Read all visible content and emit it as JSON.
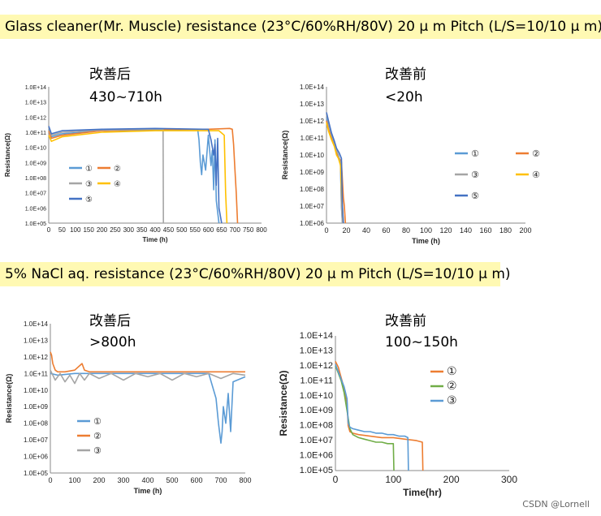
{
  "banners": {
    "glass": "Glass cleaner(Mr. Muscle) resistance (23°C/60%RH/80V) 20 μ m Pitch (L/S=10/10 μ m)",
    "nacl": "5% NaCl aq. resistance (23°C/60%RH/80V) 20 μ m Pitch (L/S=10/10 μ m)"
  },
  "annotations": {
    "c1_title": "改善后",
    "c1_time": "430~710h",
    "c2_title": "改善前",
    "c2_time": "<20h",
    "c3_title": "改善后",
    "c3_time": ">800h",
    "c4_title": "改善前",
    "c4_time": "100~150h"
  },
  "watermark": "CSDN @Lornell",
  "colors": {
    "s1": "#5b9bd5",
    "s2": "#ed7d31",
    "s3": "#a5a5a5",
    "s4": "#ffc000",
    "s5": "#4472c4",
    "s2_nacl_before": "#70ad47"
  },
  "chart_data": [
    {
      "id": "c1",
      "type": "line",
      "xlabel": "Time (h)",
      "ylabel": "Resistance(Ω)",
      "xlim": [
        0,
        800
      ],
      "ylim_exp": [
        5,
        14
      ],
      "xticks": [
        0,
        50,
        100,
        150,
        200,
        250,
        300,
        350,
        400,
        450,
        500,
        550,
        600,
        650,
        700,
        750,
        800
      ],
      "yticks": [
        "1.0E+05",
        "1.0E+06",
        "1.0E+07",
        "1.0E+08",
        "1.0E+09",
        "1.0E+10",
        "1.0E+11",
        "1.0E+12",
        "1.0E+13",
        "1.0E+14"
      ],
      "legend": [
        "①",
        "②",
        "③",
        "④",
        "⑤"
      ],
      "series": [
        {
          "name": "①",
          "color": "#5b9bd5",
          "x": [
            0,
            10,
            50,
            200,
            400,
            560,
            565,
            570,
            575,
            580,
            590,
            600,
            610,
            615,
            620,
            625,
            630,
            640
          ],
          "y": [
            11.2,
            10.7,
            10.9,
            11.1,
            11.15,
            11.2,
            10.5,
            9,
            8.2,
            9.5,
            8.5,
            10.8,
            8.8,
            9.8,
            7.2,
            10.5,
            6.5,
            5
          ]
        },
        {
          "name": "②",
          "color": "#ed7d31",
          "x": [
            0,
            10,
            50,
            200,
            400,
            600,
            680,
            690,
            695,
            700,
            705,
            710
          ],
          "y": [
            11.1,
            10.6,
            10.8,
            11.1,
            11.2,
            11.2,
            11.25,
            11.2,
            10.2,
            8.5,
            7,
            5
          ]
        },
        {
          "name": "③",
          "color": "#a5a5a5",
          "x": [
            0,
            10,
            50,
            200,
            400,
            430,
            431
          ],
          "y": [
            11.3,
            10.8,
            11,
            11.15,
            11.2,
            11.2,
            5
          ]
        },
        {
          "name": "④",
          "color": "#ffc000",
          "x": [
            0,
            10,
            50,
            200,
            400,
            600,
            640,
            660,
            665,
            670
          ],
          "y": [
            10.8,
            10.4,
            10.7,
            11,
            11.1,
            11.1,
            11.1,
            10.8,
            7,
            5
          ]
        },
        {
          "name": "⑤",
          "color": "#4472c4",
          "x": [
            0,
            10,
            50,
            200,
            400,
            580,
            600,
            610,
            620,
            625,
            630,
            635,
            640,
            650
          ],
          "y": [
            11.4,
            10.9,
            11.1,
            11.2,
            11.25,
            11.2,
            11.2,
            10.5,
            9.5,
            10.2,
            7.5,
            10.6,
            6,
            5
          ]
        }
      ]
    },
    {
      "id": "c2",
      "type": "line",
      "xlabel": "Time (h)",
      "ylabel": "Resistance(Ω)",
      "xlim": [
        0,
        200
      ],
      "ylim_exp": [
        6,
        14
      ],
      "xticks": [
        0,
        20,
        40,
        60,
        80,
        100,
        120,
        140,
        160,
        180,
        200
      ],
      "yticks": [
        "1.0E+06",
        "1.0E+07",
        "1.0E+08",
        "1.0E+09",
        "1.0E+10",
        "1.0E+11",
        "1.0E+12",
        "1.0E+13",
        "1.0E+14"
      ],
      "legend": [
        "①",
        "②",
        "③",
        "④",
        "⑤"
      ],
      "series": [
        {
          "name": "①",
          "color": "#5b9bd5",
          "x": [
            0,
            2,
            5,
            8,
            10,
            12,
            14,
            15,
            16
          ],
          "y": [
            12.2,
            11.8,
            11.2,
            10.6,
            10.2,
            10,
            9.5,
            7,
            6
          ]
        },
        {
          "name": "②",
          "color": "#ed7d31",
          "x": [
            0,
            2,
            5,
            8,
            10,
            13,
            15,
            17,
            18,
            19
          ],
          "y": [
            12,
            11.5,
            11,
            10.5,
            10.1,
            9.8,
            9.6,
            7.5,
            7,
            6
          ]
        },
        {
          "name": "③",
          "color": "#a5a5a5",
          "x": [
            0,
            2,
            5,
            8,
            10,
            12,
            14,
            15,
            16
          ],
          "y": [
            12.4,
            11.9,
            11.2,
            10.7,
            10.3,
            10,
            9.5,
            7,
            6
          ]
        },
        {
          "name": "④",
          "color": "#ffc000",
          "x": [
            0,
            2,
            5,
            8,
            10,
            12,
            14,
            16,
            17
          ],
          "y": [
            11.9,
            11.4,
            10.9,
            10.5,
            10,
            9.8,
            9.4,
            7,
            6
          ]
        },
        {
          "name": "⑤",
          "color": "#4472c4",
          "x": [
            0,
            2,
            5,
            8,
            10,
            13,
            15,
            16,
            17
          ],
          "y": [
            12.5,
            12,
            11.3,
            10.8,
            10.4,
            10.1,
            9.8,
            7,
            6
          ]
        }
      ]
    },
    {
      "id": "c3",
      "type": "line",
      "xlabel": "Time (h)",
      "ylabel": "Resistance(Ω)",
      "xlim": [
        0,
        800
      ],
      "ylim_exp": [
        5,
        14
      ],
      "xticks": [
        0,
        100,
        200,
        300,
        400,
        500,
        600,
        700,
        800
      ],
      "yticks": [
        "1.0E+05",
        "1.0E+06",
        "1.0E+07",
        "1.0E+08",
        "1.0E+09",
        "1.0E+10",
        "1.0E+11",
        "1.0E+12",
        "1.0E+13",
        "1.0E+14"
      ],
      "legend": [
        "①",
        "②",
        "③"
      ],
      "series": [
        {
          "name": "①",
          "color": "#5b9bd5",
          "x": [
            0,
            30,
            100,
            300,
            500,
            650,
            680,
            690,
            700,
            705,
            710,
            720,
            730,
            740,
            750,
            800
          ],
          "y": [
            11,
            10.9,
            11,
            11,
            11,
            11,
            9.5,
            8,
            6.8,
            7.5,
            9,
            8,
            9.8,
            7.5,
            10.5,
            10.8
          ]
        },
        {
          "name": "②",
          "color": "#ed7d31",
          "x": [
            0,
            5,
            10,
            20,
            30,
            60,
            100,
            130,
            140,
            160,
            300,
            500,
            700,
            800
          ],
          "y": [
            12.3,
            12.1,
            11.6,
            11.2,
            11.1,
            11.1,
            11.2,
            11.6,
            11.2,
            11.1,
            11.1,
            11.1,
            11.1,
            11.1
          ]
        },
        {
          "name": "③",
          "color": "#a5a5a5",
          "x": [
            0,
            20,
            40,
            60,
            80,
            100,
            120,
            140,
            160,
            200,
            250,
            300,
            350,
            400,
            450,
            500,
            550,
            600,
            650,
            700,
            750,
            800
          ],
          "y": [
            11.2,
            10.6,
            11,
            10.5,
            10.9,
            10.4,
            11,
            10.6,
            11,
            10.7,
            11,
            10.6,
            11,
            10.8,
            11,
            10.6,
            11,
            10.8,
            11,
            10.7,
            11,
            10.9
          ]
        }
      ]
    },
    {
      "id": "c4",
      "type": "line",
      "xlabel": "Time(hr)",
      "ylabel": "Resistance(Ω)",
      "xlim": [
        0,
        300
      ],
      "ylim_exp": [
        5,
        14
      ],
      "xticks": [
        0,
        100,
        200,
        300
      ],
      "yticks": [
        "1.0E+05",
        "1.0E+06",
        "1.0E+07",
        "1.0E+08",
        "1.0E+09",
        "1.0E+10",
        "1.0E+11",
        "1.0E+12",
        "1.0E+13",
        "1.0E+14"
      ],
      "legend": [
        "①",
        "②",
        "③"
      ],
      "series": [
        {
          "name": "①",
          "color": "#ed7d31",
          "x": [
            0,
            5,
            10,
            15,
            20,
            22,
            25,
            30,
            40,
            60,
            80,
            100,
            120,
            140,
            150,
            151
          ],
          "y": [
            12.3,
            11.9,
            11.2,
            10.5,
            9.5,
            8,
            7.6,
            7.5,
            7.4,
            7.3,
            7.2,
            7.2,
            7.1,
            7,
            6.9,
            5
          ]
        },
        {
          "name": "②",
          "color": "#70ad47",
          "x": [
            0,
            5,
            10,
            15,
            20,
            25,
            30,
            40,
            50,
            60,
            70,
            80,
            90,
            100,
            101
          ],
          "y": [
            12,
            11.5,
            11,
            10.2,
            9,
            7.8,
            7.4,
            7.2,
            7.1,
            7,
            6.9,
            6.9,
            6.8,
            6.8,
            5
          ]
        },
        {
          "name": "③",
          "color": "#5b9bd5",
          "x": [
            0,
            5,
            10,
            15,
            20,
            22,
            25,
            30,
            40,
            50,
            60,
            70,
            80,
            90,
            100,
            110,
            120,
            125,
            126
          ],
          "y": [
            12.1,
            11.6,
            11.1,
            10.6,
            9.8,
            8.2,
            7.9,
            7.8,
            7.7,
            7.6,
            7.6,
            7.5,
            7.5,
            7.4,
            7.4,
            7.3,
            7.3,
            7.2,
            5
          ]
        }
      ]
    }
  ]
}
